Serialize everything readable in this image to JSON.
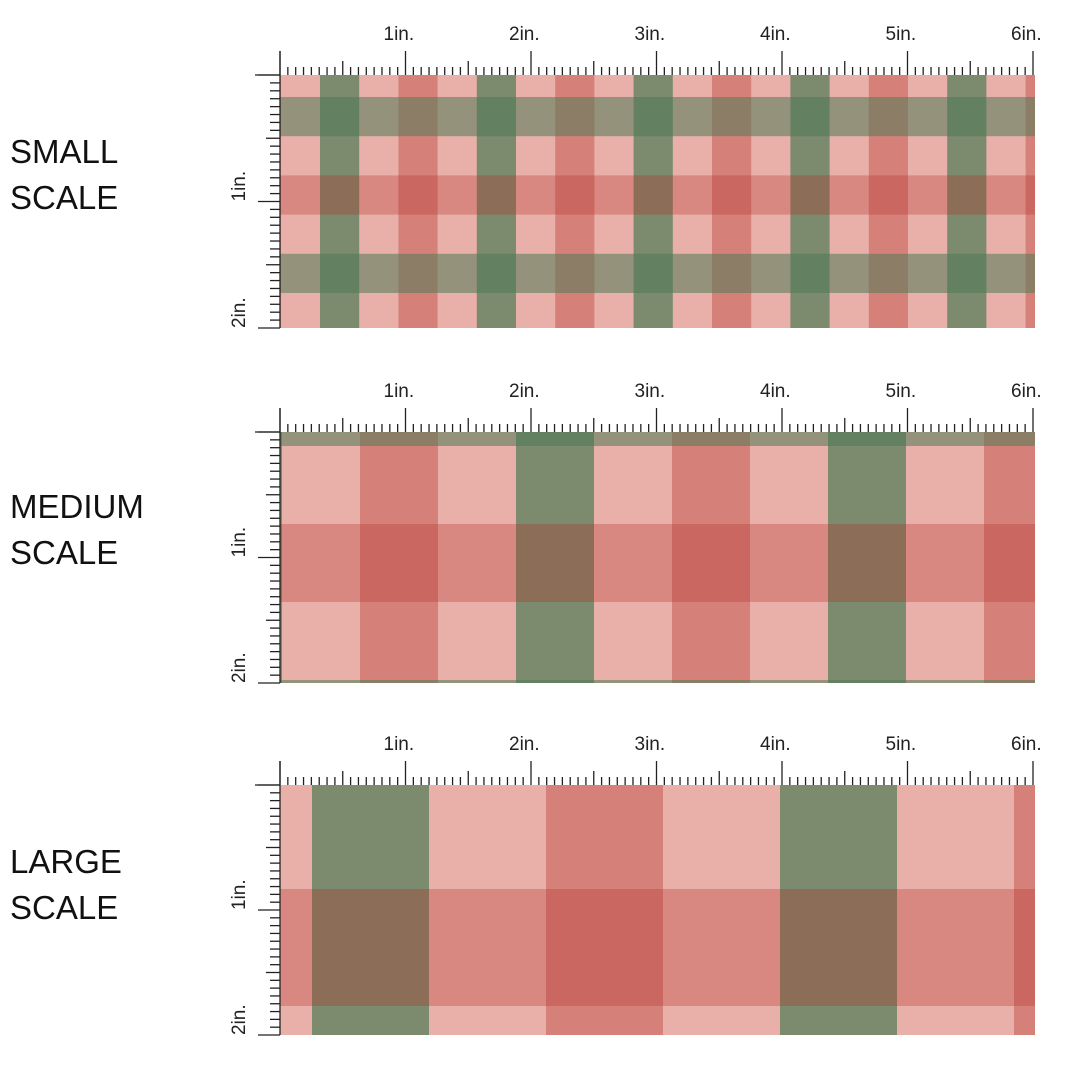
{
  "sections": [
    {
      "label_lines": [
        "SMALL",
        "SCALE"
      ]
    },
    {
      "label_lines": [
        "MEDIUM",
        "SCALE"
      ]
    },
    {
      "label_lines": [
        "LARGE",
        "SCALE"
      ]
    }
  ],
  "ruler": {
    "x_labels": [
      "1in.",
      "2in.",
      "3in.",
      "4in.",
      "5in.",
      "6in."
    ],
    "y_labels": [
      "1in.",
      "2in."
    ]
  }
}
